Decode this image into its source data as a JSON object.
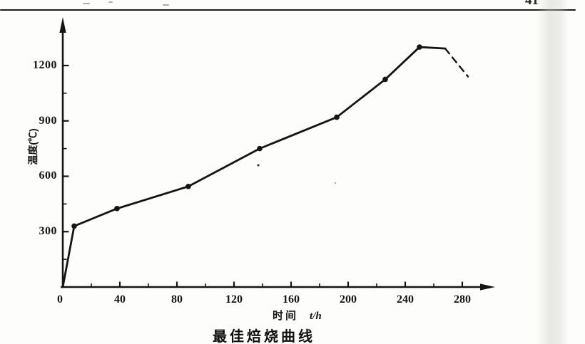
{
  "page": {
    "page_number": "41"
  },
  "chart_data": {
    "type": "line",
    "title": "最佳焙烧曲线",
    "xlabel": "时间",
    "xlabel_symbol": "t/h",
    "ylabel": "温度(℃)",
    "x_ticks_major": [
      0,
      40,
      80,
      120,
      160,
      200,
      240,
      280
    ],
    "x_ticks_minor": [
      20,
      60,
      100,
      140,
      180,
      220,
      260
    ],
    "y_ticks_major": [
      300,
      600,
      900,
      1200
    ],
    "y_ticks_minor": [
      150,
      450,
      750,
      1050
    ],
    "xlim": [
      0,
      300
    ],
    "ylim": [
      0,
      1430
    ],
    "grid": false,
    "legend": false,
    "line_color": "#151515",
    "background": "#fdfdfb",
    "series": [
      {
        "name": "heating-curve-solid",
        "style": "solid",
        "points": [
          [
            0,
            0
          ],
          [
            8,
            330
          ],
          [
            38,
            425
          ],
          [
            88,
            545
          ],
          [
            138,
            750
          ],
          [
            192,
            920
          ],
          [
            226,
            1125
          ],
          [
            250,
            1300
          ],
          [
            268,
            1292
          ]
        ]
      },
      {
        "name": "end-segment-dashed",
        "style": "dashed",
        "points": [
          [
            268,
            1292
          ],
          [
            284,
            1140
          ]
        ]
      }
    ],
    "marker_points": [
      [
        8,
        330
      ],
      [
        38,
        425
      ],
      [
        88,
        545
      ],
      [
        138,
        750
      ],
      [
        192,
        920
      ],
      [
        226,
        1125
      ],
      [
        250,
        1300
      ]
    ]
  }
}
